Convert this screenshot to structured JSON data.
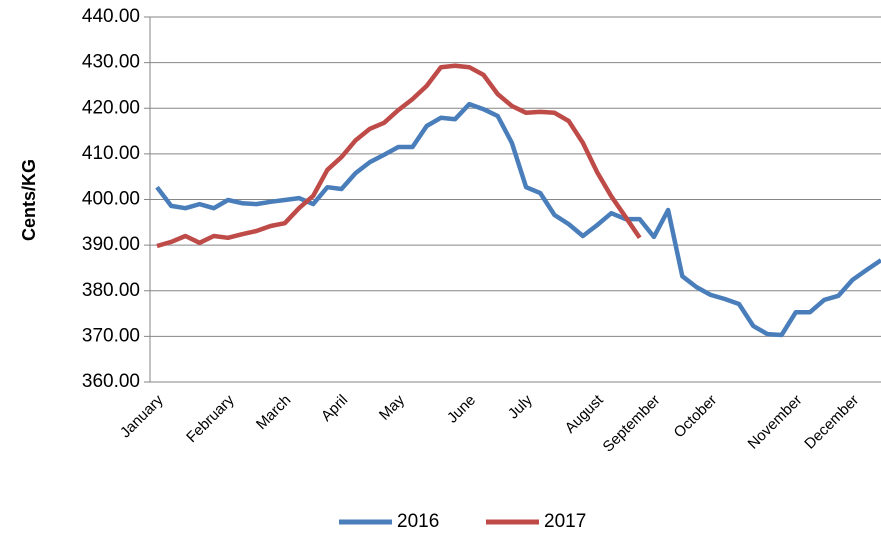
{
  "chart_data": {
    "type": "line",
    "ylabel": "Cents/KG",
    "categories": [
      "January",
      null,
      null,
      null,
      null,
      "February",
      null,
      null,
      null,
      "March",
      null,
      null,
      null,
      "April",
      null,
      null,
      null,
      "May",
      null,
      null,
      null,
      null,
      "June",
      null,
      null,
      null,
      "July",
      null,
      null,
      null,
      null,
      "August",
      null,
      null,
      null,
      "September",
      null,
      null,
      null,
      "October",
      null,
      null,
      null,
      null,
      null,
      "November",
      null,
      null,
      null,
      "December",
      null,
      null
    ],
    "series": [
      {
        "name": "2016",
        "color": "#4a7ebb",
        "values": [
          402.7,
          398.6,
          398.1,
          399.0,
          398.1,
          399.9,
          399.2,
          399.0,
          399.5,
          399.9,
          400.3,
          399.0,
          402.7,
          402.3,
          405.8,
          408.2,
          409.8,
          411.5,
          411.5,
          416.1,
          417.9,
          417.6,
          420.9,
          419.8,
          418.3,
          412.4,
          402.7,
          401.4,
          396.6,
          394.6,
          392.0,
          394.4,
          397.0,
          395.7,
          395.7,
          391.8,
          397.7,
          383.2,
          380.8,
          379.1,
          378.2,
          377.1,
          372.3,
          370.5,
          370.3,
          375.3,
          375.3,
          378.0,
          378.9,
          382.4,
          384.6,
          386.7
        ]
      },
      {
        "name": "2017",
        "color": "#be4b48",
        "values": [
          389.8,
          390.7,
          392.0,
          390.5,
          392.0,
          391.6,
          392.4,
          393.1,
          394.2,
          394.8,
          398.1,
          400.8,
          406.5,
          409.3,
          413.0,
          415.5,
          416.8,
          419.6,
          422.0,
          424.9,
          429.0,
          429.3,
          429.0,
          427.3,
          423.1,
          420.5,
          419.0,
          419.2,
          419.0,
          417.2,
          412.4,
          406.0,
          400.7,
          396.2,
          391.6,
          null,
          null,
          null,
          null,
          null,
          null,
          null,
          null,
          null,
          null,
          null,
          null,
          null,
          null,
          null,
          null,
          null
        ]
      }
    ],
    "ylim": [
      360,
      440
    ],
    "yticks": [
      {
        "value": 360,
        "label": "360.00"
      },
      {
        "value": 370,
        "label": "370.00"
      },
      {
        "value": 380,
        "label": "380.00"
      },
      {
        "value": 390,
        "label": "390.00"
      },
      {
        "value": 400,
        "label": "400.00"
      },
      {
        "value": 410,
        "label": "410.00"
      },
      {
        "value": 420,
        "label": "420.00"
      },
      {
        "value": 430,
        "label": "430.00"
      },
      {
        "value": 440,
        "label": "440.00"
      }
    ],
    "grid": true,
    "legend": "bottom"
  }
}
